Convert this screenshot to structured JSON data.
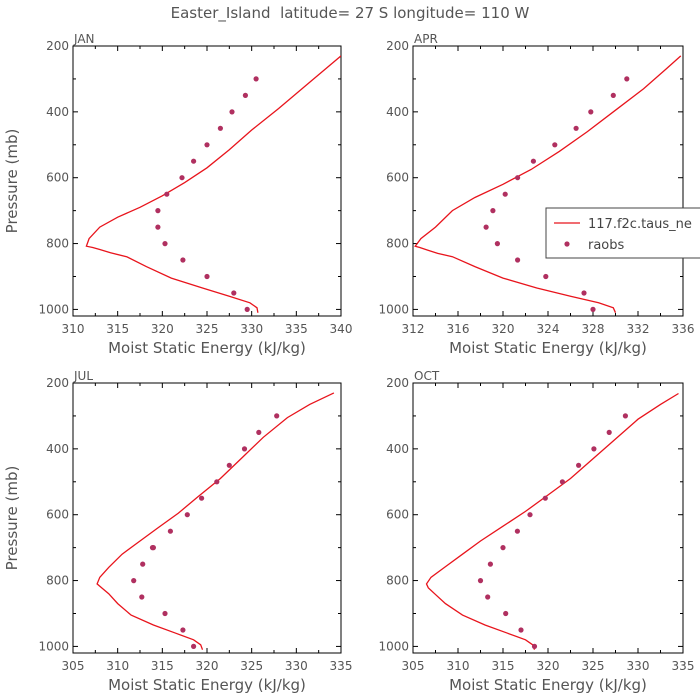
{
  "figure": {
    "title": "Easter_Island  latitude= 27 S longitude= 110 W",
    "colors": {
      "model": "#e8141c",
      "obs": "#b03060",
      "axis": "#000000",
      "text": "#555555"
    }
  },
  "chart_data": [
    {
      "type": "line",
      "title": "JAN",
      "xlabel": "Moist Static Energy (kJ/kg)",
      "ylabel": "Pressure (mb)",
      "xlim": [
        310,
        340
      ],
      "ylim": [
        1020,
        200
      ],
      "xticks": [
        "310",
        "315",
        "320",
        "325",
        "330",
        "335",
        "340"
      ],
      "yticks": [
        "200",
        "400",
        "600",
        "800",
        "1000"
      ],
      "series": [
        {
          "kind": "line",
          "x": [
            330.7,
            330.6,
            329.8,
            327.5,
            324.5,
            321.0,
            318.2,
            316.0,
            314.2,
            313.0,
            312.2,
            311.5,
            311.8,
            313.0,
            315.0,
            317.5,
            320.0,
            322.5,
            325.0,
            327.5,
            330.0,
            333.0,
            336.5,
            340.0
          ],
          "y": [
            1010,
            995,
            980,
            960,
            935,
            905,
            870,
            840,
            828,
            818,
            812,
            808,
            785,
            750,
            720,
            690,
            655,
            615,
            570,
            515,
            455,
            390,
            310,
            230
          ]
        },
        {
          "kind": "scatter",
          "x": [
            329.5,
            328.0,
            325.0,
            322.3,
            320.3,
            319.5,
            319.5,
            320.5,
            322.2,
            323.5,
            325.0,
            326.5,
            327.8,
            329.3,
            330.5
          ],
          "y": [
            1000,
            950,
            900,
            850,
            800,
            750,
            700,
            650,
            600,
            550,
            500,
            450,
            400,
            350,
            300
          ]
        }
      ]
    },
    {
      "type": "line",
      "title": "APR",
      "xlabel": "Moist Static Energy (kJ/kg)",
      "ylabel": "",
      "xlim": [
        312,
        336
      ],
      "ylim": [
        1020,
        200
      ],
      "xticks": [
        "312",
        "316",
        "320",
        "324",
        "328",
        "332",
        "336"
      ],
      "yticks": [
        "200",
        "400",
        "600",
        "800",
        "1000"
      ],
      "series": [
        {
          "name": "117.f2c.taus_ne",
          "kind": "line",
          "x": [
            330.0,
            329.8,
            328.5,
            326.0,
            323.0,
            320.0,
            317.5,
            315.5,
            314.2,
            313.3,
            312.6,
            312.2,
            312.7,
            314.0,
            315.5,
            317.5,
            320.0,
            322.5,
            325.0,
            327.5,
            330.0,
            332.5,
            334.5,
            335.8
          ],
          "y": [
            1010,
            995,
            980,
            960,
            935,
            905,
            870,
            840,
            830,
            820,
            812,
            808,
            785,
            750,
            700,
            660,
            620,
            575,
            520,
            460,
            395,
            330,
            270,
            230
          ]
        },
        {
          "name": "raobs",
          "kind": "scatter",
          "x": [
            328.0,
            327.2,
            323.8,
            321.3,
            319.5,
            318.5,
            319.1,
            320.2,
            321.3,
            322.7,
            324.6,
            326.5,
            327.8,
            329.8,
            331.0
          ],
          "y": [
            1000,
            950,
            900,
            850,
            800,
            750,
            700,
            650,
            600,
            550,
            500,
            450,
            400,
            350,
            300
          ]
        }
      ]
    },
    {
      "type": "line",
      "title": "JUL",
      "xlabel": "Moist Static Energy (kJ/kg)",
      "ylabel": "Pressure (mb)",
      "xlim": [
        305,
        335
      ],
      "ylim": [
        1020,
        200
      ],
      "xticks": [
        "305",
        "310",
        "315",
        "320",
        "325",
        "330",
        "335"
      ],
      "yticks": [
        "200",
        "400",
        "600",
        "800",
        "1000"
      ],
      "series": [
        {
          "kind": "line",
          "x": [
            319.5,
            319.3,
            318.5,
            316.5,
            314.0,
            311.5,
            310.0,
            309.0,
            308.2,
            307.7,
            308.0,
            309.0,
            310.5,
            312.5,
            314.5,
            316.8,
            319.0,
            321.5,
            324.0,
            326.3,
            329.0,
            331.5,
            334.2
          ],
          "y": [
            1010,
            995,
            980,
            960,
            935,
            905,
            870,
            840,
            822,
            810,
            790,
            760,
            720,
            680,
            640,
            595,
            545,
            490,
            425,
            365,
            305,
            265,
            230
          ]
        },
        {
          "kind": "scatter",
          "x": [
            318.5,
            317.3,
            315.3,
            312.7,
            311.8,
            312.8,
            313.9,
            314.0,
            315.9,
            317.8,
            319.4,
            321.1,
            322.5,
            324.2,
            325.8,
            327.8
          ],
          "y": [
            1000,
            950,
            900,
            850,
            800,
            750,
            700,
            700,
            650,
            600,
            550,
            500,
            450,
            400,
            350,
            300
          ]
        }
      ]
    },
    {
      "type": "line",
      "title": "OCT",
      "xlabel": "Moist Static Energy (kJ/kg)",
      "ylabel": "",
      "xlim": [
        305,
        335
      ],
      "ylim": [
        1020,
        200
      ],
      "xticks": [
        "305",
        "310",
        "315",
        "320",
        "325",
        "330",
        "335"
      ],
      "yticks": [
        "200",
        "400",
        "600",
        "800",
        "1000"
      ],
      "series": [
        {
          "kind": "line",
          "x": [
            318.5,
            318.3,
            317.5,
            315.5,
            313.0,
            310.5,
            308.6,
            307.4,
            306.7,
            306.5,
            307.0,
            308.5,
            310.5,
            312.5,
            315.0,
            317.5,
            320.0,
            322.5,
            325.0,
            327.5,
            330.0,
            332.5,
            334.5
          ],
          "y": [
            1010,
            995,
            980,
            960,
            935,
            905,
            870,
            840,
            822,
            810,
            790,
            760,
            720,
            680,
            635,
            590,
            540,
            490,
            430,
            370,
            310,
            265,
            232
          ]
        },
        {
          "kind": "scatter",
          "x": [
            318.5,
            317.0,
            315.3,
            313.3,
            312.5,
            313.6,
            315.0,
            316.6,
            318.0,
            319.7,
            321.6,
            323.4,
            325.1,
            326.8,
            328.6
          ],
          "y": [
            1000,
            950,
            900,
            850,
            800,
            750,
            700,
            650,
            600,
            550,
            500,
            450,
            400,
            350,
            300
          ]
        }
      ]
    }
  ]
}
